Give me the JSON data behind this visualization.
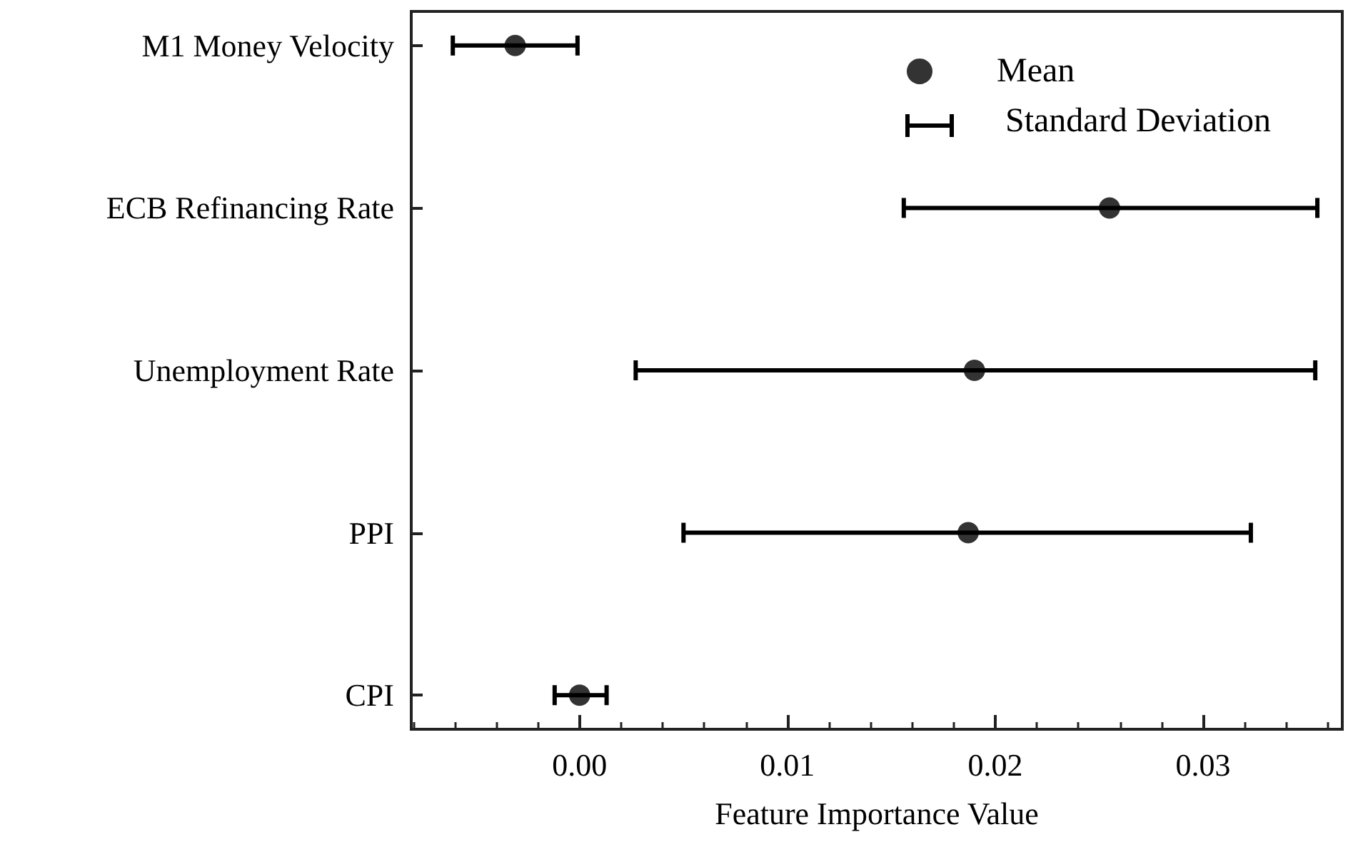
{
  "chart_data": {
    "type": "scatter",
    "orientation": "horizontal",
    "xlabel": "Feature Importance Value",
    "categories": [
      "M1 Money Velocity",
      "ECB Refinancing Rate",
      "Unemployment Rate",
      "PPI",
      "CPI"
    ],
    "series": [
      {
        "name": "Mean",
        "color": "#000000",
        "values": [
          -0.0031,
          0.0255,
          0.019,
          0.0187,
          0.0
        ],
        "errors": [
          [
            -0.0061,
            -0.0001
          ],
          [
            0.0156,
            0.0355
          ],
          [
            0.0027,
            0.0354
          ],
          [
            0.005,
            0.0323
          ],
          [
            -0.0012,
            0.0013
          ]
        ]
      }
    ],
    "annotations": [
      "Standard Deviation"
    ],
    "xlim": [
      -0.0081,
      0.0367
    ],
    "xticks": [
      {
        "value": 0,
        "label": "0.00"
      },
      {
        "value": 0.01,
        "label": "0.01"
      },
      {
        "value": 0.02,
        "label": "0.02"
      },
      {
        "value": 0.03,
        "label": "0.03"
      }
    ],
    "marker": "circle",
    "legend": "top right",
    "grid": false
  }
}
